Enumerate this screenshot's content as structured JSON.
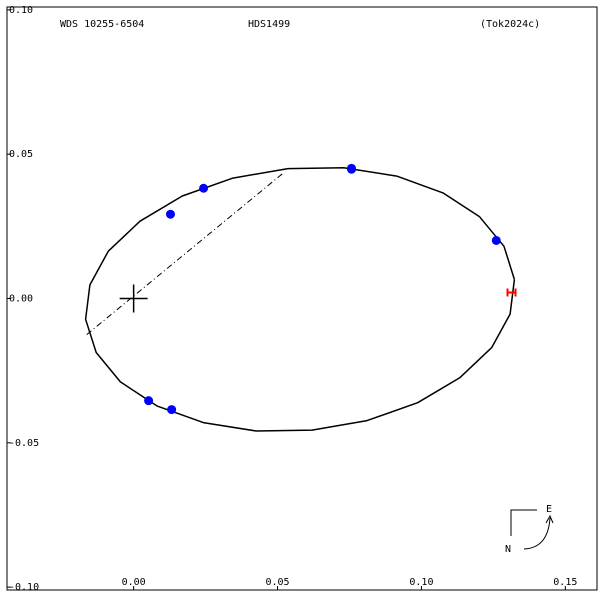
{
  "chart_data": {
    "type": "orbit",
    "header": [
      "WDS 10255-6504",
      "HDS1499",
      "(Tok2024c)"
    ],
    "xlim": [
      -0.044,
      0.161
    ],
    "ylim": [
      -0.101,
      0.101
    ],
    "xticks": [
      {
        "value": 0,
        "label": "0.00"
      },
      0.05,
      {
        "value": 0.1,
        "label": "0.10"
      },
      0.15
    ],
    "yticks": [
      {
        "value": 0.1,
        "label": "0.10"
      },
      0.05,
      {
        "value": 0,
        "label": "0.00"
      },
      -0.05,
      {
        "value": -0.1,
        "label": "-0.10"
      }
    ],
    "orbit": {
      "color": "#000000",
      "x": [
        0.1323,
        0.1287,
        0.1202,
        0.1075,
        0.0914,
        0.073,
        0.0536,
        0.0345,
        0.0169,
        0.0022,
        -0.0088,
        -0.0152,
        -0.0167,
        -0.013,
        -0.0046,
        0.0081,
        0.0242,
        0.0426,
        0.062,
        0.0811,
        0.0987,
        0.1134,
        0.1244,
        0.1308,
        0.1323
      ],
      "y": [
        0.0066,
        0.0181,
        0.0283,
        0.0366,
        0.0424,
        0.0453,
        0.045,
        0.0417,
        0.0355,
        0.0268,
        0.0164,
        0.0047,
        -0.0072,
        -0.0187,
        -0.0289,
        -0.0372,
        -0.043,
        -0.0459,
        -0.0456,
        -0.0423,
        -0.0361,
        -0.0274,
        -0.017,
        -0.0054,
        0.0066
      ]
    },
    "node_line": {
      "x": [
        -0.0163,
        0.0524
      ],
      "y": [
        -0.0125,
        0.0438
      ]
    },
    "primary": {
      "x": 0,
      "y": 0
    },
    "observations": {
      "color": "#0000ff",
      "x": [
        0.0128,
        0.0243,
        0.0757,
        0.0757,
        0.126,
        0.0052,
        0.0132
      ],
      "y": [
        0.0292,
        0.0382,
        0.0451,
        0.0448,
        0.0201,
        -0.0354,
        -0.0385
      ]
    },
    "last_observation": {
      "color": "#ff0000",
      "x": 0.1313,
      "y": 0.0021
    },
    "compass": [
      "E",
      "N"
    ]
  }
}
